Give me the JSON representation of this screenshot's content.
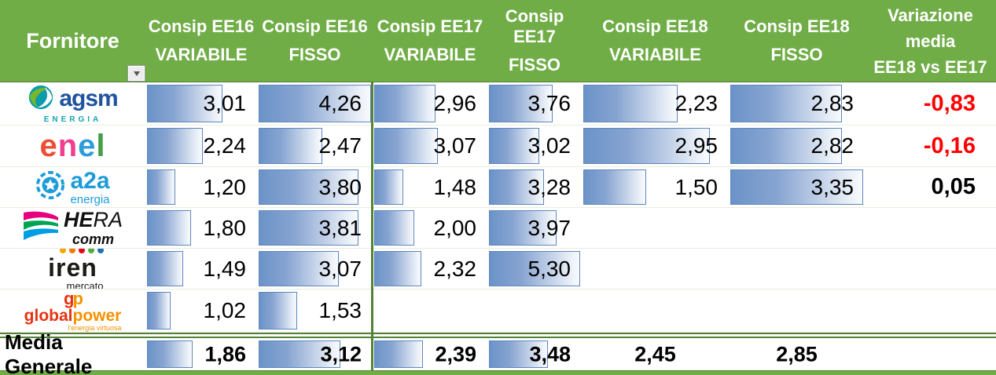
{
  "header": {
    "fornitore_label": "Fornitore",
    "value_columns": [
      {
        "title": "Consip EE16",
        "subtitle": "VARIABILE"
      },
      {
        "title": "Consip EE16",
        "subtitle": "FISSO"
      },
      {
        "title": "Consip EE17",
        "subtitle": "VARIABILE"
      },
      {
        "title": "Consip EE17",
        "subtitle": "FISSO"
      },
      {
        "title": "Consip EE18",
        "subtitle": "VARIABILE"
      },
      {
        "title": "Consip EE18",
        "subtitle": "FISSO"
      }
    ],
    "variazione_column": {
      "lines": [
        "Variazione",
        "media",
        "EE18 vs EE17"
      ]
    }
  },
  "suppliers": [
    {
      "name": "AGSM Energia",
      "logo": {
        "type": "agsm",
        "text": "agsm",
        "subtext": "ENERGIA"
      },
      "values": [
        "3,01",
        "4,26",
        "2,96",
        "3,76",
        "2,23",
        "2,83"
      ],
      "variazione": {
        "text": "-0,83",
        "sign": "negative"
      }
    },
    {
      "name": "Enel",
      "logo": {
        "type": "enel",
        "text": "enel"
      },
      "values": [
        "2,24",
        "2,47",
        "3,07",
        "3,02",
        "2,95",
        "2,82"
      ],
      "variazione": {
        "text": "-0,16",
        "sign": "negative"
      }
    },
    {
      "name": "A2A Energia",
      "logo": {
        "type": "a2a",
        "text": "a2a",
        "subtext": "energia"
      },
      "values": [
        "1,20",
        "3,80",
        "1,48",
        "3,28",
        "1,50",
        "3,35"
      ],
      "variazione": {
        "text": "0,05",
        "sign": "positive"
      }
    },
    {
      "name": "Hera Comm",
      "logo": {
        "type": "hera",
        "text": "HERA",
        "subtext": "comm"
      },
      "values": [
        "1,80",
        "3,81",
        "2,00",
        "3,97",
        "",
        ""
      ],
      "variazione": null
    },
    {
      "name": "Iren Mercato",
      "logo": {
        "type": "iren",
        "text": "iren",
        "subtext": "mercato"
      },
      "values": [
        "1,49",
        "3,07",
        "2,32",
        "5,30",
        "",
        ""
      ],
      "variazione": null
    },
    {
      "name": "Global Power",
      "logo": {
        "type": "globalpower",
        "monogram": "gp",
        "text": "globalpower",
        "subtext": "l'energia virtuosa"
      },
      "values": [
        "1,02",
        "1,53",
        "",
        "",
        "",
        ""
      ],
      "variazione": null
    }
  ],
  "footer": {
    "label": "Media Generale",
    "values": [
      "1,86",
      "3,12",
      "2,39",
      "3,48",
      "2,45",
      "2,85"
    ],
    "show_bars": [
      true,
      true,
      true,
      true,
      false,
      false
    ],
    "variazione": ""
  },
  "colors": {
    "header_green": "#70AD47",
    "dark_green": "#538135",
    "bar_border": "#5E87BE",
    "bar_fill": "#6B93C8",
    "negative_value": "#FF0000",
    "positive_value": "#000000"
  }
}
